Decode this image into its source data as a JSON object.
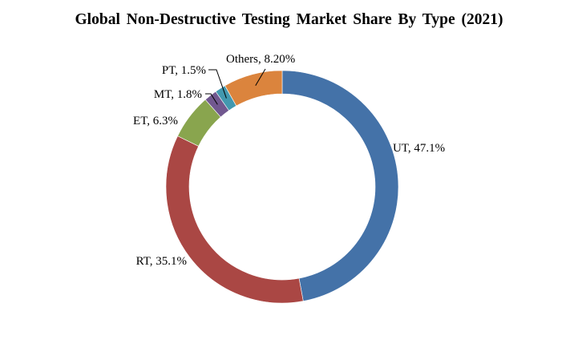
{
  "chart_data": {
    "type": "pie",
    "title": "Global Non-Destructive Testing Market Share By Type (2021)",
    "categories": [
      "UT",
      "RT",
      "ET",
      "MT",
      "PT",
      "Others"
    ],
    "values": [
      47.1,
      35.1,
      6.3,
      1.8,
      1.5,
      8.2
    ],
    "data_labels": [
      "UT, 47.1%",
      "RT, 35.1%",
      "ET, 6.3%",
      "MT, 1.8%",
      "PT, 1.5%",
      "Others, 8.20%"
    ],
    "colors": [
      "#4472A8",
      "#AA4744",
      "#89A54E",
      "#71588F",
      "#4298AF",
      "#DB843D"
    ],
    "legend": "none"
  }
}
